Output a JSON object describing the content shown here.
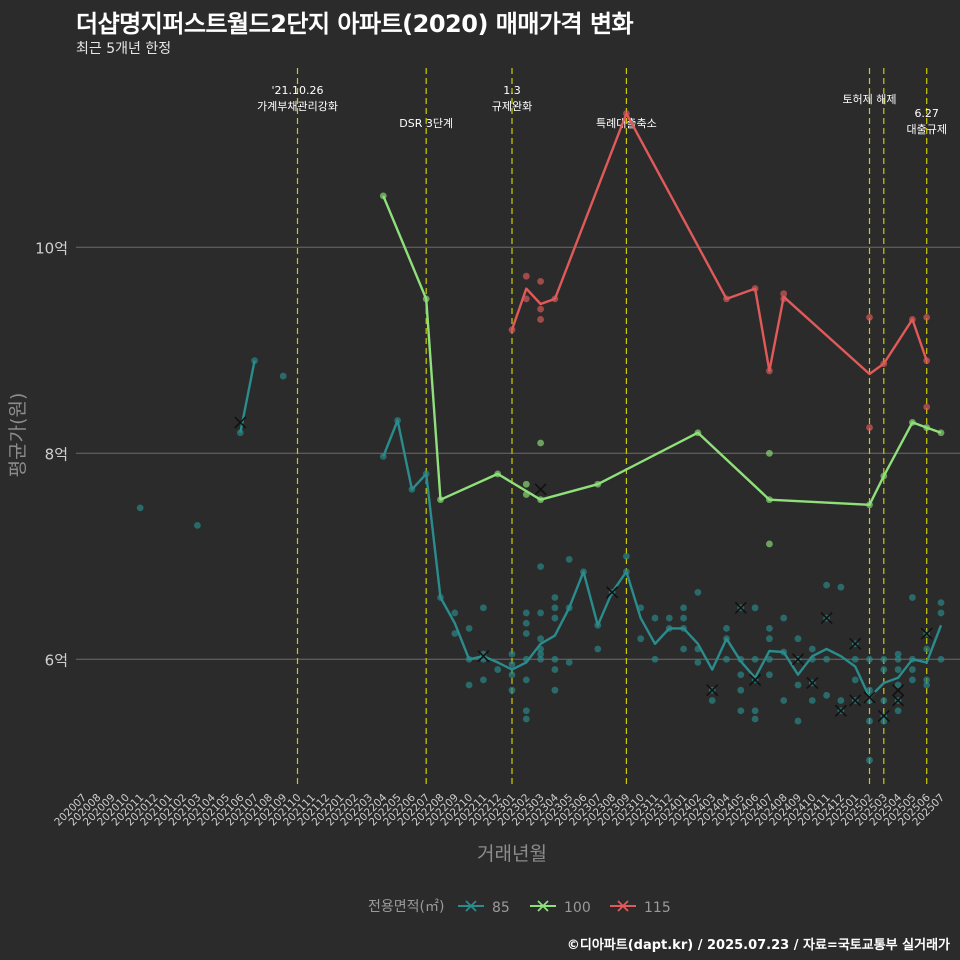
{
  "title": "더샵명지퍼스트월드2단지 아파트(2020) 매매가격 변화",
  "subtitle": "최근 5개년 한정",
  "caption": "©디아파트(dapt.kr) / 2025.07.23 / 자료=국토교통부 실거래가",
  "colors": {
    "background": "#2b2b2b",
    "s85": "#2a8c8c",
    "s100": "#8fe07a",
    "s115": "#e05a5a",
    "event": "#cccc00",
    "grid": "#5a5a5a"
  },
  "chart_data": {
    "type": "line",
    "xlabel": "거래년월",
    "ylabel": "평균가(원)",
    "ylim": [
      4.75,
      11.8
    ],
    "yticks": [
      {
        "v": 6,
        "label": "6억"
      },
      {
        "v": 8,
        "label": "8억"
      },
      {
        "v": 10,
        "label": "10억"
      }
    ],
    "grid": "horizontal",
    "legend_position": "bottom",
    "legend_title": "전용면적(㎡)",
    "categories": [
      "202007",
      "202008",
      "202009",
      "202010",
      "202011",
      "202012",
      "202101",
      "202102",
      "202103",
      "202104",
      "202105",
      "202106",
      "202107",
      "202108",
      "202109",
      "202110",
      "202111",
      "202112",
      "202201",
      "202202",
      "202203",
      "202204",
      "202205",
      "202206",
      "202207",
      "202208",
      "202209",
      "202210",
      "202211",
      "202212",
      "202301",
      "202302",
      "202303",
      "202304",
      "202305",
      "202306",
      "202307",
      "202308",
      "202309",
      "202310",
      "202311",
      "202312",
      "202401",
      "202402",
      "202403",
      "202404",
      "202405",
      "202406",
      "202407",
      "202408",
      "202409",
      "202410",
      "202411",
      "202412",
      "202501",
      "202502",
      "202503",
      "202504",
      "202505",
      "202506",
      "202507"
    ],
    "events": [
      {
        "x": "202110",
        "label": [
          "'21.10.26",
          "가계부채관리강화"
        ],
        "row": 0
      },
      {
        "x": "202207",
        "label": [
          "DSR 3단계"
        ],
        "row": 2
      },
      {
        "x": "202301",
        "label": [
          "1.3",
          "규제완화"
        ],
        "row": 0
      },
      {
        "x": "202309",
        "label": [
          "특례대출축소"
        ],
        "row": 2
      },
      {
        "x": "202502",
        "label": [
          "토허제 해제"
        ],
        "row": 1
      },
      {
        "x": "202503",
        "label": [],
        "row": 1
      },
      {
        "x": "202506",
        "label": [
          "6.27",
          "대출규제"
        ],
        "row": 3
      }
    ],
    "series": [
      {
        "name": "85",
        "color": "#2a8c8c",
        "lines": [
          [
            [
              "202106",
              8.2
            ],
            [
              "202107",
              8.9
            ]
          ],
          [
            [
              "202204",
              7.97
            ],
            [
              "202205",
              8.32
            ],
            [
              "202206",
              7.65
            ],
            [
              "202207",
              7.8
            ],
            [
              "202208",
              6.6
            ],
            [
              "202209",
              6.35
            ],
            [
              "202210",
              6.0
            ],
            [
              "202211",
              6.03
            ],
            [
              "202212",
              5.97
            ],
            [
              "202301",
              5.9
            ],
            [
              "202302",
              5.97
            ],
            [
              "202303",
              6.15
            ],
            [
              "202304",
              6.23
            ],
            [
              "202305",
              6.5
            ],
            [
              "202306",
              6.85
            ],
            [
              "202307",
              6.33
            ],
            [
              "202308",
              6.65
            ],
            [
              "202309",
              6.85
            ],
            [
              "202310",
              6.4
            ],
            [
              "202311",
              6.15
            ],
            [
              "202312",
              6.3
            ],
            [
              "202401",
              6.3
            ],
            [
              "202402",
              6.15
            ],
            [
              "202403",
              5.9
            ],
            [
              "202404",
              6.2
            ],
            [
              "202405",
              5.98
            ],
            [
              "202406",
              5.82
            ],
            [
              "202407",
              6.08
            ],
            [
              "202408",
              6.07
            ],
            [
              "202409",
              5.85
            ],
            [
              "202410",
              6.03
            ],
            [
              "202411",
              6.1
            ],
            [
              "202412",
              6.03
            ],
            [
              "202501",
              5.93
            ],
            [
              "202502",
              5.63
            ],
            [
              "202503",
              5.77
            ],
            [
              "202504",
              5.82
            ],
            [
              "202505",
              6.0
            ],
            [
              "202506",
              5.97
            ],
            [
              "202507",
              6.33
            ]
          ]
        ],
        "points": [
          [
            "202011",
            7.47
          ],
          [
            "202103",
            7.3
          ],
          [
            "202106",
            8.2
          ],
          [
            "202107",
            8.9
          ],
          [
            "202109",
            8.75
          ],
          [
            "202204",
            7.97
          ],
          [
            "202205",
            8.32
          ],
          [
            "202206",
            7.65
          ],
          [
            "202207",
            7.8
          ],
          [
            "202208",
            6.6
          ],
          [
            "202209",
            6.45
          ],
          [
            "202209",
            6.25
          ],
          [
            "202210",
            6.3
          ],
          [
            "202210",
            6.0
          ],
          [
            "202210",
            5.75
          ],
          [
            "202211",
            6.05
          ],
          [
            "202211",
            6.0
          ],
          [
            "202211",
            5.8
          ],
          [
            "202211",
            6.5
          ],
          [
            "202212",
            5.9
          ],
          [
            "202301",
            6.05
          ],
          [
            "202301",
            5.95
          ],
          [
            "202301",
            5.7
          ],
          [
            "202301",
            5.85
          ],
          [
            "202302",
            6.45
          ],
          [
            "202302",
            6.35
          ],
          [
            "202302",
            6.25
          ],
          [
            "202302",
            6.0
          ],
          [
            "202302",
            5.8
          ],
          [
            "202302",
            5.5
          ],
          [
            "202302",
            5.42
          ],
          [
            "202303",
            6.45
          ],
          [
            "202303",
            6.2
          ],
          [
            "202303",
            6.1
          ],
          [
            "202303",
            6.05
          ],
          [
            "202303",
            6.0
          ],
          [
            "202303",
            6.9
          ],
          [
            "202304",
            6.6
          ],
          [
            "202304",
            6.5
          ],
          [
            "202304",
            6.4
          ],
          [
            "202304",
            6.0
          ],
          [
            "202304",
            5.9
          ],
          [
            "202304",
            5.7
          ],
          [
            "202305",
            6.97
          ],
          [
            "202305",
            6.5
          ],
          [
            "202305",
            5.97
          ],
          [
            "202306",
            6.85
          ],
          [
            "202307",
            6.33
          ],
          [
            "202307",
            6.1
          ],
          [
            "202308",
            6.65
          ],
          [
            "202309",
            6.85
          ],
          [
            "202309",
            7.0
          ],
          [
            "202310",
            6.5
          ],
          [
            "202310",
            6.2
          ],
          [
            "202311",
            6.4
          ],
          [
            "202311",
            6.0
          ],
          [
            "202312",
            6.4
          ],
          [
            "202312",
            6.3
          ],
          [
            "202401",
            6.5
          ],
          [
            "202401",
            6.4
          ],
          [
            "202401",
            6.3
          ],
          [
            "202401",
            6.1
          ],
          [
            "202402",
            6.65
          ],
          [
            "202402",
            6.1
          ],
          [
            "202402",
            5.97
          ],
          [
            "202403",
            5.7
          ],
          [
            "202403",
            5.6
          ],
          [
            "202404",
            6.3
          ],
          [
            "202404",
            6.2
          ],
          [
            "202404",
            6.0
          ],
          [
            "202405",
            6.5
          ],
          [
            "202405",
            6.0
          ],
          [
            "202405",
            5.85
          ],
          [
            "202405",
            5.7
          ],
          [
            "202405",
            5.5
          ],
          [
            "202406",
            6.5
          ],
          [
            "202406",
            6.0
          ],
          [
            "202406",
            5.8
          ],
          [
            "202406",
            5.5
          ],
          [
            "202406",
            5.42
          ],
          [
            "202407",
            6.3
          ],
          [
            "202407",
            6.2
          ],
          [
            "202407",
            6.0
          ],
          [
            "202407",
            5.85
          ],
          [
            "202408",
            6.4
          ],
          [
            "202408",
            6.07
          ],
          [
            "202408",
            5.6
          ],
          [
            "202409",
            6.2
          ],
          [
            "202409",
            6.0
          ],
          [
            "202409",
            5.75
          ],
          [
            "202409",
            5.4
          ],
          [
            "202410",
            6.1
          ],
          [
            "202410",
            6.0
          ],
          [
            "202410",
            5.77
          ],
          [
            "202410",
            5.6
          ],
          [
            "202411",
            6.72
          ],
          [
            "202411",
            6.4
          ],
          [
            "202411",
            6.0
          ],
          [
            "202411",
            5.65
          ],
          [
            "202412",
            6.7
          ],
          [
            "202412",
            5.6
          ],
          [
            "202412",
            5.5
          ],
          [
            "202501",
            6.15
          ],
          [
            "202501",
            6.0
          ],
          [
            "202501",
            5.8
          ],
          [
            "202501",
            5.6
          ],
          [
            "202502",
            6.0
          ],
          [
            "202502",
            5.7
          ],
          [
            "202502",
            5.6
          ],
          [
            "202502",
            5.4
          ],
          [
            "202502",
            5.02
          ],
          [
            "202503",
            6.0
          ],
          [
            "202503",
            5.9
          ],
          [
            "202503",
            5.6
          ],
          [
            "202503",
            5.45
          ],
          [
            "202503",
            5.4
          ],
          [
            "202504",
            6.05
          ],
          [
            "202504",
            6.0
          ],
          [
            "202504",
            5.9
          ],
          [
            "202504",
            5.75
          ],
          [
            "202504",
            5.6
          ],
          [
            "202504",
            5.5
          ],
          [
            "202505",
            6.6
          ],
          [
            "202505",
            6.0
          ],
          [
            "202505",
            5.9
          ],
          [
            "202505",
            5.8
          ],
          [
            "202506",
            6.25
          ],
          [
            "202506",
            6.1
          ],
          [
            "202506",
            5.8
          ],
          [
            "202506",
            5.75
          ],
          [
            "202507",
            6.55
          ],
          [
            "202507",
            6.45
          ],
          [
            "202507",
            6.0
          ]
        ],
        "crosses": [
          [
            "202106",
            8.3
          ],
          [
            "202211",
            6.03
          ],
          [
            "202308",
            6.65
          ],
          [
            "202403",
            5.7
          ],
          [
            "202405",
            6.5
          ],
          [
            "202406",
            5.8
          ],
          [
            "202409",
            6.0
          ],
          [
            "202410",
            5.77
          ],
          [
            "202411",
            6.4
          ],
          [
            "202412",
            5.5
          ],
          [
            "202501",
            5.6
          ],
          [
            "202501",
            6.15
          ],
          [
            "202502",
            5.63
          ],
          [
            "202503",
            5.45
          ],
          [
            "202504",
            5.7
          ],
          [
            "202504",
            5.6
          ],
          [
            "202506",
            6.25
          ]
        ]
      },
      {
        "name": "100",
        "color": "#8fe07a",
        "lines": [
          [
            [
              "202204",
              10.5
            ],
            [
              "202207",
              9.5
            ],
            [
              "202208",
              7.55
            ],
            [
              "202212",
              7.8
            ],
            [
              "202303",
              7.55
            ],
            [
              "202307",
              7.7
            ],
            [
              "202402",
              8.2
            ],
            [
              "202407",
              7.55
            ],
            [
              "202502",
              7.5
            ],
            [
              "202503",
              7.78
            ],
            [
              "202505",
              8.3
            ],
            [
              "202506",
              8.25
            ],
            [
              "202507",
              8.2
            ]
          ]
        ],
        "points": [
          [
            "202204",
            10.5
          ],
          [
            "202207",
            9.5
          ],
          [
            "202208",
            7.55
          ],
          [
            "202212",
            7.8
          ],
          [
            "202302",
            7.7
          ],
          [
            "202302",
            7.6
          ],
          [
            "202303",
            8.1
          ],
          [
            "202303",
            7.55
          ],
          [
            "202307",
            7.7
          ],
          [
            "202402",
            8.2
          ],
          [
            "202407",
            8.0
          ],
          [
            "202407",
            7.12
          ],
          [
            "202407",
            7.55
          ],
          [
            "202502",
            7.5
          ],
          [
            "202503",
            7.78
          ],
          [
            "202505",
            8.3
          ],
          [
            "202506",
            8.25
          ],
          [
            "202507",
            8.2
          ]
        ],
        "crosses": [
          [
            "202303",
            7.65
          ]
        ]
      },
      {
        "name": "115",
        "color": "#e05a5a",
        "lines": [
          [
            [
              "202301",
              9.2
            ],
            [
              "202302",
              9.6
            ],
            [
              "202303",
              9.45
            ],
            [
              "202304",
              9.5
            ],
            [
              "202309",
              11.3
            ],
            [
              "202404",
              9.5
            ],
            [
              "202406",
              9.6
            ],
            [
              "202407",
              8.8
            ],
            [
              "202408",
              9.52
            ],
            [
              "202502",
              8.77
            ],
            [
              "202503",
              8.87
            ],
            [
              "202505",
              9.3
            ],
            [
              "202506",
              8.9
            ]
          ]
        ],
        "points": [
          [
            "202301",
            9.2
          ],
          [
            "202302",
            9.72
          ],
          [
            "202302",
            9.5
          ],
          [
            "202303",
            9.67
          ],
          [
            "202303",
            9.4
          ],
          [
            "202303",
            9.3
          ],
          [
            "202304",
            9.5
          ],
          [
            "202309",
            11.3
          ],
          [
            "202404",
            9.5
          ],
          [
            "202406",
            9.6
          ],
          [
            "202407",
            8.8
          ],
          [
            "202408",
            9.55
          ],
          [
            "202408",
            9.5
          ],
          [
            "202502",
            9.32
          ],
          [
            "202502",
            8.25
          ],
          [
            "202503",
            8.87
          ],
          [
            "202505",
            9.3
          ],
          [
            "202506",
            9.32
          ],
          [
            "202506",
            8.45
          ],
          [
            "202506",
            8.9
          ]
        ],
        "crosses": []
      }
    ]
  }
}
